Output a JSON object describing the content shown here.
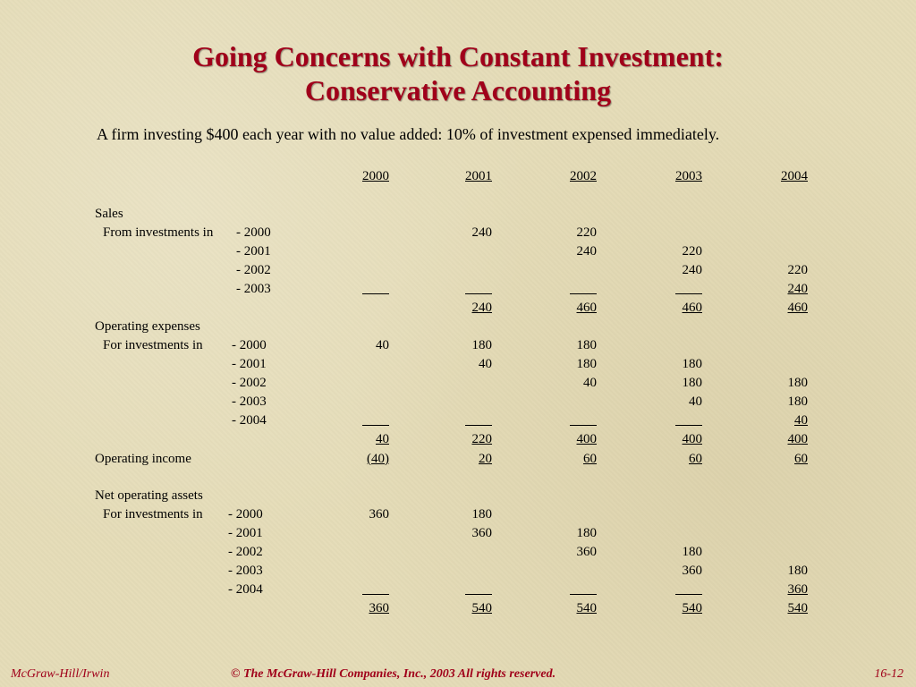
{
  "title": {
    "line1": "Going Concerns with Constant Investment:",
    "line2": "Conservative Accounting"
  },
  "subtitle": "A firm investing $400 each year with no value added:  10% of investment expensed immediately.",
  "years": [
    "2000",
    "2001",
    "2002",
    "2003",
    "2004"
  ],
  "sales": {
    "heading": "Sales",
    "sub_label": "From investments in",
    "rows": [
      {
        "label": "- 2000",
        "values": [
          "",
          "240",
          "220",
          "",
          ""
        ]
      },
      {
        "label": "- 2001",
        "values": [
          "",
          "",
          "240",
          "220",
          ""
        ]
      },
      {
        "label": "- 2002",
        "values": [
          "",
          "",
          "",
          "240",
          "220"
        ]
      },
      {
        "label": "- 2003",
        "values": [
          "",
          "",
          "",
          "",
          "240"
        ]
      }
    ],
    "total": [
      "",
      "240",
      "460",
      "460",
      "460"
    ]
  },
  "opex": {
    "heading": "Operating expenses",
    "sub_label": "For investments in",
    "rows": [
      {
        "label": "- 2000",
        "values": [
          "40",
          "180",
          "180",
          "",
          ""
        ]
      },
      {
        "label": "- 2001",
        "values": [
          "",
          "40",
          "180",
          "180",
          ""
        ]
      },
      {
        "label": "- 2002",
        "values": [
          "",
          "",
          "40",
          "180",
          "180"
        ]
      },
      {
        "label": "- 2003",
        "values": [
          "",
          "",
          "",
          "40",
          "180"
        ]
      },
      {
        "label": "- 2004",
        "values": [
          "",
          "",
          "",
          "",
          "40"
        ]
      }
    ],
    "total": [
      "40",
      "220",
      "400",
      "400",
      "400"
    ]
  },
  "operating_income": {
    "label": "Operating income",
    "values": [
      "(40)",
      "20",
      "60",
      "60",
      "60"
    ]
  },
  "noa": {
    "heading": "Net operating assets",
    "sub_label": "For investments in",
    "rows": [
      {
        "label": "- 2000",
        "values": [
          "360",
          "180",
          "",
          "",
          ""
        ]
      },
      {
        "label": "- 2001",
        "values": [
          "",
          "360",
          "180",
          "",
          ""
        ]
      },
      {
        "label": "- 2002",
        "values": [
          "",
          "",
          "360",
          "180",
          ""
        ]
      },
      {
        "label": "- 2003",
        "values": [
          "",
          "",
          "",
          "360",
          "180"
        ]
      },
      {
        "label": "- 2004",
        "values": [
          "",
          "",
          "",
          "",
          "360"
        ]
      }
    ],
    "total": [
      "360",
      "540",
      "540",
      "540",
      "540"
    ]
  },
  "footer": {
    "left": "McGraw-Hill/Irwin",
    "center": "© The McGraw-Hill Companies, Inc., 2003  All rights reserved.",
    "right": "16-12"
  }
}
